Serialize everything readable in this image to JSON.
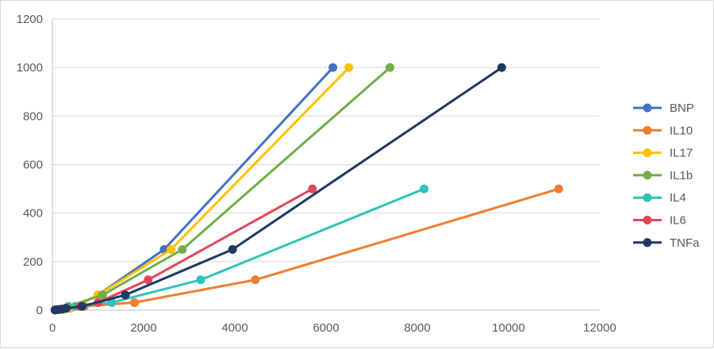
{
  "chart_data": {
    "type": "line",
    "title": "",
    "xlabel": "",
    "ylabel": "",
    "xlim": [
      0,
      12000
    ],
    "ylim": [
      0,
      1200
    ],
    "x_ticks": [
      0,
      2000,
      4000,
      6000,
      8000,
      10000,
      12000
    ],
    "y_ticks": [
      0,
      200,
      400,
      600,
      800,
      1000,
      1200
    ],
    "grid": {
      "horizontal": true,
      "vertical": false
    },
    "legend_position": "right",
    "series": [
      {
        "name": "BNP",
        "color": "#4472c4",
        "points": [
          [
            60,
            0.98
          ],
          [
            120,
            1.95
          ],
          [
            250,
            3.9
          ],
          [
            350,
            7.8
          ],
          [
            500,
            15.6
          ],
          [
            1000,
            62.5
          ],
          [
            2450,
            250
          ],
          [
            6150,
            1000
          ]
        ]
      },
      {
        "name": "IL10",
        "color": "#ed7d31",
        "points": [
          [
            60,
            0.98
          ],
          [
            120,
            1.95
          ],
          [
            200,
            3.9
          ],
          [
            300,
            7.8
          ],
          [
            700,
            15.6
          ],
          [
            1800,
            31.25
          ],
          [
            4450,
            125
          ],
          [
            11100,
            500
          ]
        ]
      },
      {
        "name": "IL17",
        "color": "#ffc000",
        "points": [
          [
            60,
            0.98
          ],
          [
            120,
            1.95
          ],
          [
            250,
            3.9
          ],
          [
            400,
            7.8
          ],
          [
            1000,
            62.5
          ],
          [
            2600,
            250
          ],
          [
            6500,
            1000
          ]
        ]
      },
      {
        "name": "IL1b",
        "color": "#70ad47",
        "points": [
          [
            60,
            0.98
          ],
          [
            120,
            1.95
          ],
          [
            250,
            3.9
          ],
          [
            350,
            15.6
          ],
          [
            1100,
            62.5
          ],
          [
            2850,
            250
          ],
          [
            7400,
            1000
          ]
        ]
      },
      {
        "name": "IL4",
        "color": "#2ec4b6",
        "points": [
          [
            60,
            0.98
          ],
          [
            120,
            1.95
          ],
          [
            200,
            3.9
          ],
          [
            300,
            7.8
          ],
          [
            500,
            15.6
          ],
          [
            1300,
            31.25
          ],
          [
            3250,
            125
          ],
          [
            8150,
            500
          ]
        ]
      },
      {
        "name": "IL6",
        "color": "#e0475b",
        "points": [
          [
            60,
            0.98
          ],
          [
            120,
            1.95
          ],
          [
            200,
            3.9
          ],
          [
            300,
            7.8
          ],
          [
            600,
            15.6
          ],
          [
            1000,
            31.25
          ],
          [
            2100,
            125
          ],
          [
            5700,
            500
          ]
        ]
      },
      {
        "name": "TNFa",
        "color": "#203864",
        "points": [
          [
            60,
            0.98
          ],
          [
            120,
            1.95
          ],
          [
            200,
            3.9
          ],
          [
            300,
            7.8
          ],
          [
            650,
            15.6
          ],
          [
            1600,
            62.5
          ],
          [
            3950,
            250
          ],
          [
            9850,
            1000
          ]
        ]
      }
    ]
  }
}
